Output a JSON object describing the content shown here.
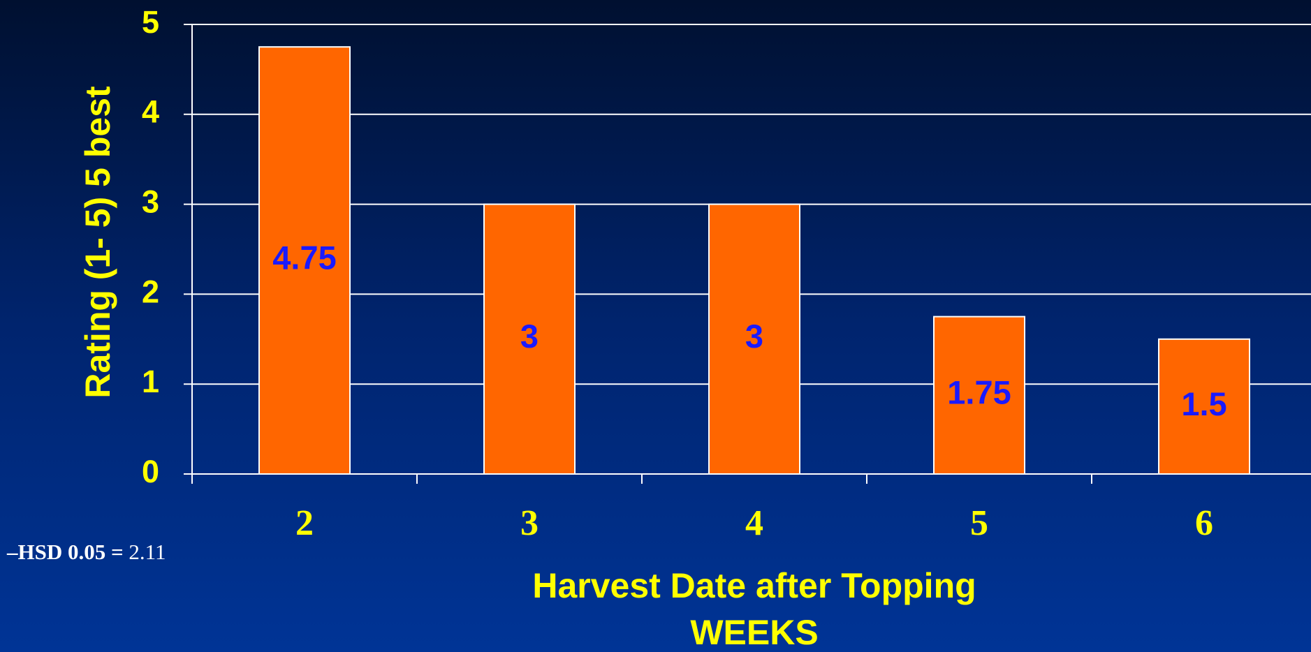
{
  "chart_data": {
    "type": "bar",
    "ylabel": "Rating (1- 5) 5 best",
    "xlabel": [
      "Harvest Date after Topping",
      "WEEKS"
    ],
    "categories": [
      "2",
      "3",
      "4",
      "5",
      "6"
    ],
    "values": [
      4.75,
      3,
      3,
      1.75,
      1.5
    ],
    "color": "#ff6600",
    "ylim": [
      0,
      5
    ],
    "yticks": [
      0,
      1,
      2,
      3,
      4,
      5
    ],
    "grid": true,
    "annotation": {
      "label": "–HSD 0.05 =",
      "value": "2.11"
    }
  }
}
